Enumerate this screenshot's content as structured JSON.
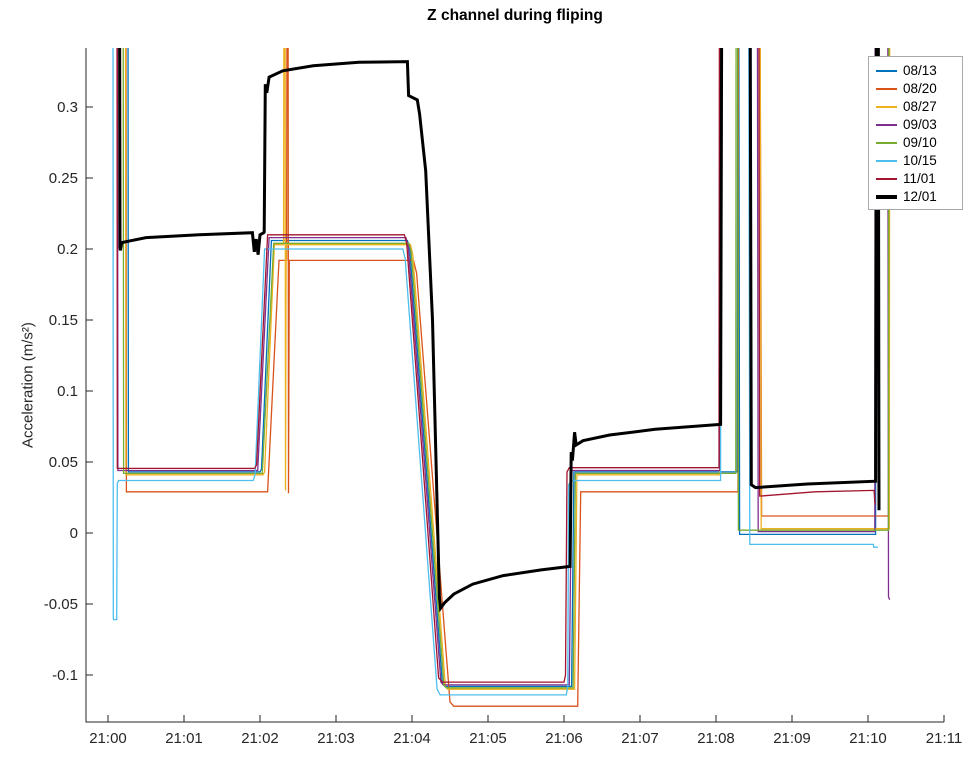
{
  "chart_data": {
    "type": "line",
    "title": "Z channel during fliping",
    "xlabel": "",
    "ylabel": "Acceleration (m/s²)",
    "grid": false,
    "legend_position": "top-right",
    "x_unit": "minutes after 21:00",
    "xlim": [
      -0.29,
      11.0
    ],
    "ylim": [
      -0.133,
      0.342
    ],
    "x_tick_labels": [
      "21:00",
      "21:01",
      "21:02",
      "21:03",
      "21:04",
      "21:05",
      "21:06",
      "21:07",
      "21:08",
      "21:09",
      "21:10",
      "21:11"
    ],
    "y_ticks": [
      {
        "v": -0.1,
        "label": "-0.1"
      },
      {
        "v": -0.05,
        "label": "-0.05"
      },
      {
        "v": 0,
        "label": "0"
      },
      {
        "v": 0.05,
        "label": "0.05"
      },
      {
        "v": 0.1,
        "label": "0.1"
      },
      {
        "v": 0.15,
        "label": "0.15"
      },
      {
        "v": 0.2,
        "label": "0.2"
      },
      {
        "v": 0.25,
        "label": "0.25"
      },
      {
        "v": 0.3,
        "label": "0.3"
      }
    ],
    "axis_color": "#262626",
    "series": [
      {
        "name": "08/13",
        "color": "#0072BD",
        "width": 1.3,
        "points": [
          [
            0.263,
            0.37
          ],
          [
            0.268,
            0.043
          ],
          [
            2.0,
            0.043
          ],
          [
            2.02,
            0.045
          ],
          [
            2.15,
            0.206
          ],
          [
            3.94,
            0.206
          ],
          [
            3.97,
            0.2
          ],
          [
            4.4,
            -0.106
          ],
          [
            4.43,
            -0.108
          ],
          [
            6.1,
            -0.108
          ],
          [
            6.13,
            0.043
          ],
          [
            8.28,
            0.043
          ],
          [
            8.285,
            0.37
          ],
          [
            8.3,
            0.37
          ],
          [
            8.31,
            -0.001
          ],
          [
            10.1,
            -0.001
          ],
          [
            10.105,
            0.37
          ]
        ]
      },
      {
        "name": "08/20",
        "color": "#D95319",
        "width": 1.3,
        "points": [
          [
            0.237,
            0.37
          ],
          [
            0.242,
            0.029
          ],
          [
            2.1,
            0.029
          ],
          [
            2.25,
            0.192
          ],
          [
            2.35,
            0.192
          ],
          [
            2.355,
            0.37
          ],
          [
            2.37,
            0.37
          ],
          [
            2.375,
            0.028
          ],
          [
            2.385,
            0.192
          ],
          [
            4.02,
            0.192
          ],
          [
            4.06,
            0.183
          ],
          [
            4.5,
            -0.119
          ],
          [
            4.55,
            -0.122
          ],
          [
            6.18,
            -0.122
          ],
          [
            6.22,
            0.029
          ],
          [
            8.29,
            0.029
          ],
          [
            8.295,
            0.37
          ],
          [
            8.58,
            0.37
          ],
          [
            8.6,
            0.012
          ],
          [
            10.27,
            0.012
          ],
          [
            10.275,
            0.37
          ]
        ]
      },
      {
        "name": "08/27",
        "color": "#EDB120",
        "width": 1.3,
        "points": [
          [
            0.23,
            0.37
          ],
          [
            0.235,
            0.041
          ],
          [
            2.04,
            0.041
          ],
          [
            2.06,
            0.043
          ],
          [
            2.19,
            0.203
          ],
          [
            2.31,
            0.203
          ],
          [
            2.315,
            0.37
          ],
          [
            2.33,
            0.37
          ],
          [
            2.335,
            0.03
          ],
          [
            2.345,
            0.203
          ],
          [
            3.98,
            0.203
          ],
          [
            4.01,
            0.196
          ],
          [
            4.44,
            -0.108
          ],
          [
            4.47,
            -0.11
          ],
          [
            6.14,
            -0.11
          ],
          [
            6.17,
            0.041
          ],
          [
            8.05,
            0.041
          ],
          [
            8.055,
            0.37
          ],
          [
            8.58,
            0.37
          ],
          [
            8.595,
            0.003
          ],
          [
            10.28,
            0.003
          ],
          [
            10.285,
            0.37
          ]
        ]
      },
      {
        "name": "09/03",
        "color": "#7E2F8E",
        "width": 1.3,
        "points": [
          [
            0.125,
            0.37
          ],
          [
            0.13,
            0.044
          ],
          [
            1.97,
            0.044
          ],
          [
            2.12,
            0.208
          ],
          [
            3.92,
            0.208
          ],
          [
            3.95,
            0.202
          ],
          [
            4.38,
            -0.105
          ],
          [
            4.41,
            -0.107
          ],
          [
            6.07,
            -0.107
          ],
          [
            6.1,
            0.044
          ],
          [
            8.05,
            0.044
          ],
          [
            8.055,
            0.37
          ],
          [
            8.545,
            0.37
          ],
          [
            8.555,
            0.001
          ],
          [
            10.09,
            0.001
          ],
          [
            10.095,
            0.37
          ],
          [
            10.26,
            0.37
          ],
          [
            10.27,
            -0.045
          ],
          [
            10.285,
            -0.047
          ]
        ]
      },
      {
        "name": "09/10",
        "color": "#77AC30",
        "width": 1.3,
        "points": [
          [
            0.2,
            0.37
          ],
          [
            0.205,
            0.042
          ],
          [
            2.03,
            0.042
          ],
          [
            2.18,
            0.204
          ],
          [
            3.96,
            0.204
          ],
          [
            3.99,
            0.198
          ],
          [
            4.42,
            -0.107
          ],
          [
            4.45,
            -0.109
          ],
          [
            6.12,
            -0.109
          ],
          [
            6.15,
            0.042
          ],
          [
            8.26,
            0.042
          ],
          [
            8.265,
            0.37
          ],
          [
            8.285,
            0.37
          ],
          [
            8.295,
            0.002
          ],
          [
            10.27,
            0.002
          ],
          [
            10.275,
            0.37
          ]
        ]
      },
      {
        "name": "10/15",
        "color": "#4DBEEE",
        "width": 1.3,
        "points": [
          [
            0.066,
            0.37
          ],
          [
            0.07,
            -0.059
          ],
          [
            0.072,
            -0.061
          ],
          [
            0.115,
            -0.061
          ],
          [
            0.122,
            0.035
          ],
          [
            0.14,
            0.037
          ],
          [
            1.91,
            0.037
          ],
          [
            1.935,
            0.041
          ],
          [
            2.06,
            0.2
          ],
          [
            3.88,
            0.2
          ],
          [
            3.91,
            0.193
          ],
          [
            4.33,
            -0.11
          ],
          [
            4.37,
            -0.114
          ],
          [
            6.03,
            -0.114
          ],
          [
            6.05,
            -0.108
          ],
          [
            6.06,
            0.034
          ],
          [
            6.1,
            0.037
          ],
          [
            8.06,
            0.037
          ],
          [
            8.065,
            0.37
          ],
          [
            8.43,
            0.37
          ],
          [
            8.445,
            -0.008
          ],
          [
            10.07,
            -0.008
          ],
          [
            10.075,
            -0.01
          ],
          [
            10.13,
            -0.01
          ]
        ]
      },
      {
        "name": "11/01",
        "color": "#A2142F",
        "width": 1.3,
        "points": [
          [
            0.118,
            0.37
          ],
          [
            0.123,
            0.0455
          ],
          [
            1.93,
            0.0455
          ],
          [
            1.955,
            0.048
          ],
          [
            2.1,
            0.21
          ],
          [
            3.9,
            0.21
          ],
          [
            3.93,
            0.204
          ],
          [
            4.35,
            -0.102
          ],
          [
            4.4,
            -0.105
          ],
          [
            6.0,
            -0.105
          ],
          [
            6.02,
            -0.1
          ],
          [
            6.04,
            0.043
          ],
          [
            6.07,
            0.046
          ],
          [
            8.04,
            0.046
          ],
          [
            8.045,
            0.37
          ],
          [
            8.565,
            0.37
          ],
          [
            8.575,
            0.026
          ],
          [
            9.3,
            0.029
          ],
          [
            10.08,
            0.03
          ],
          [
            10.09,
            0.022
          ],
          [
            10.1,
            0.02
          ]
        ]
      },
      {
        "name": "12/01",
        "color": "#000000",
        "width": 3.0,
        "points": [
          [
            0.152,
            0.37
          ],
          [
            0.158,
            0.201
          ],
          [
            0.163,
            0.199
          ],
          [
            0.18,
            0.2045
          ],
          [
            0.5,
            0.208
          ],
          [
            1.2,
            0.21
          ],
          [
            1.9,
            0.2115
          ],
          [
            1.925,
            0.198
          ],
          [
            1.95,
            0.207
          ],
          [
            1.975,
            0.196
          ],
          [
            2.0,
            0.21
          ],
          [
            2.05,
            0.2115
          ],
          [
            2.055,
            0.212
          ],
          [
            2.07,
            0.316
          ],
          [
            2.09,
            0.31
          ],
          [
            2.12,
            0.321
          ],
          [
            2.3,
            0.3255
          ],
          [
            2.7,
            0.329
          ],
          [
            3.3,
            0.3315
          ],
          [
            3.94,
            0.332
          ],
          [
            3.955,
            0.308
          ],
          [
            4.07,
            0.305
          ],
          [
            4.1,
            0.295
          ],
          [
            4.18,
            0.255
          ],
          [
            4.27,
            0.15
          ],
          [
            4.33,
            0.02
          ],
          [
            4.36,
            -0.045
          ],
          [
            4.375,
            -0.053
          ],
          [
            4.43,
            -0.049
          ],
          [
            4.55,
            -0.043
          ],
          [
            4.8,
            -0.036
          ],
          [
            5.2,
            -0.03
          ],
          [
            5.7,
            -0.026
          ],
          [
            6.08,
            -0.0235
          ],
          [
            6.095,
            0.057
          ],
          [
            6.11,
            0.051
          ],
          [
            6.14,
            0.071
          ],
          [
            6.16,
            0.062
          ],
          [
            6.25,
            0.065
          ],
          [
            6.6,
            0.069
          ],
          [
            7.2,
            0.073
          ],
          [
            8.06,
            0.0765
          ],
          [
            8.075,
            0.37
          ],
          [
            8.45,
            0.37
          ],
          [
            8.465,
            0.034
          ],
          [
            8.52,
            0.032
          ],
          [
            9.2,
            0.0345
          ],
          [
            10.1,
            0.0365
          ],
          [
            10.11,
            0.37
          ],
          [
            10.135,
            0.37
          ],
          [
            10.145,
            0.016
          ]
        ]
      }
    ],
    "legend": [
      {
        "label": "08/13",
        "color": "#0072BD",
        "thick": false
      },
      {
        "label": "08/20",
        "color": "#D95319",
        "thick": false
      },
      {
        "label": "08/27",
        "color": "#EDB120",
        "thick": false
      },
      {
        "label": "09/03",
        "color": "#7E2F8E",
        "thick": false
      },
      {
        "label": "09/10",
        "color": "#77AC30",
        "thick": false
      },
      {
        "label": "10/15",
        "color": "#4DBEEE",
        "thick": false
      },
      {
        "label": "11/01",
        "color": "#A2142F",
        "thick": false
      },
      {
        "label": "12/01",
        "color": "#000000",
        "thick": true
      }
    ]
  }
}
